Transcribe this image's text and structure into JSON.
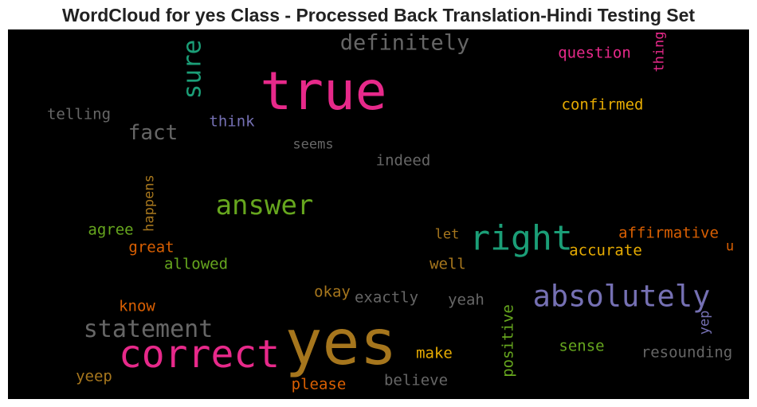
{
  "chart_data": {
    "type": "wordcloud",
    "title": "WordCloud for yes Class - Processed Back Translation-Hindi Testing Set",
    "background": "#000000",
    "colors": {
      "pink": "#e7298a",
      "teal": "#1b9e77",
      "purple": "#7570b3",
      "gold": "#a6761d",
      "grey": "#666666",
      "orange": "#d95f02",
      "green": "#66a61e",
      "yellow": "#e6ab02"
    },
    "words": [
      {
        "text": "yes",
        "weight": 1.0,
        "color": "gold",
        "orientation": "horizontal"
      },
      {
        "text": "true",
        "weight": 0.85,
        "color": "pink",
        "orientation": "horizontal"
      },
      {
        "text": "correct",
        "weight": 0.62,
        "color": "pink",
        "orientation": "horizontal"
      },
      {
        "text": "right",
        "weight": 0.55,
        "color": "teal",
        "orientation": "horizontal"
      },
      {
        "text": "absolutely",
        "weight": 0.47,
        "color": "purple",
        "orientation": "horizontal"
      },
      {
        "text": "answer",
        "weight": 0.43,
        "color": "green",
        "orientation": "horizontal"
      },
      {
        "text": "sure",
        "weight": 0.4,
        "color": "teal",
        "orientation": "vertical"
      },
      {
        "text": "statement",
        "weight": 0.39,
        "color": "grey",
        "orientation": "horizontal"
      },
      {
        "text": "definitely",
        "weight": 0.34,
        "color": "grey",
        "orientation": "horizontal"
      },
      {
        "text": "fact",
        "weight": 0.33,
        "color": "grey",
        "orientation": "horizontal"
      },
      {
        "text": "question",
        "weight": 0.24,
        "color": "pink",
        "orientation": "horizontal"
      },
      {
        "text": "thing",
        "weight": 0.22,
        "color": "pink",
        "orientation": "vertical"
      },
      {
        "text": "confirmed",
        "weight": 0.24,
        "color": "yellow",
        "orientation": "horizontal"
      },
      {
        "text": "telling",
        "weight": 0.24,
        "color": "grey",
        "orientation": "horizontal"
      },
      {
        "text": "think",
        "weight": 0.24,
        "color": "purple",
        "orientation": "horizontal"
      },
      {
        "text": "seems",
        "weight": 0.22,
        "color": "grey",
        "orientation": "horizontal"
      },
      {
        "text": "indeed",
        "weight": 0.24,
        "color": "grey",
        "orientation": "horizontal"
      },
      {
        "text": "happens",
        "weight": 0.22,
        "color": "gold",
        "orientation": "vertical"
      },
      {
        "text": "agree",
        "weight": 0.24,
        "color": "green",
        "orientation": "horizontal"
      },
      {
        "text": "great",
        "weight": 0.24,
        "color": "orange",
        "orientation": "horizontal"
      },
      {
        "text": "allowed",
        "weight": 0.24,
        "color": "green",
        "orientation": "horizontal"
      },
      {
        "text": "let",
        "weight": 0.22,
        "color": "gold",
        "orientation": "horizontal"
      },
      {
        "text": "affirmative",
        "weight": 0.24,
        "color": "orange",
        "orientation": "horizontal"
      },
      {
        "text": "u",
        "weight": 0.22,
        "color": "orange",
        "orientation": "horizontal"
      },
      {
        "text": "accurate",
        "weight": 0.24,
        "color": "yellow",
        "orientation": "horizontal"
      },
      {
        "text": "well",
        "weight": 0.24,
        "color": "gold",
        "orientation": "horizontal"
      },
      {
        "text": "okay",
        "weight": 0.24,
        "color": "gold",
        "orientation": "horizontal"
      },
      {
        "text": "exactly",
        "weight": 0.24,
        "color": "grey",
        "orientation": "horizontal"
      },
      {
        "text": "yeah",
        "weight": 0.24,
        "color": "grey",
        "orientation": "horizontal"
      },
      {
        "text": "know",
        "weight": 0.24,
        "color": "orange",
        "orientation": "horizontal"
      },
      {
        "text": "positive",
        "weight": 0.24,
        "color": "green",
        "orientation": "vertical"
      },
      {
        "text": "yep",
        "weight": 0.22,
        "color": "purple",
        "orientation": "vertical"
      },
      {
        "text": "sense",
        "weight": 0.24,
        "color": "green",
        "orientation": "horizontal"
      },
      {
        "text": "resounding",
        "weight": 0.24,
        "color": "grey",
        "orientation": "horizontal"
      },
      {
        "text": "make",
        "weight": 0.24,
        "color": "yellow",
        "orientation": "horizontal"
      },
      {
        "text": "yeep",
        "weight": 0.24,
        "color": "gold",
        "orientation": "horizontal"
      },
      {
        "text": "please",
        "weight": 0.24,
        "color": "orange",
        "orientation": "horizontal"
      },
      {
        "text": "believe",
        "weight": 0.24,
        "color": "grey",
        "orientation": "horizontal"
      }
    ]
  }
}
